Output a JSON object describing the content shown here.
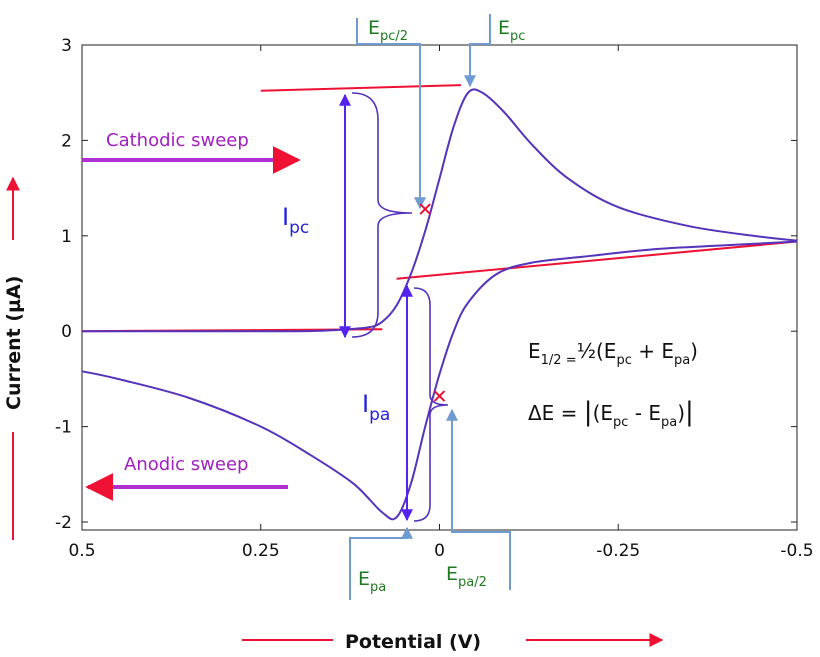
{
  "chart_data": {
    "type": "line",
    "title": "",
    "xlabel": "Potential (V)",
    "ylabel": "Current (µA)",
    "xlim": [
      0.5,
      -0.5
    ],
    "ylim": [
      -2.1,
      3.0
    ],
    "x_ticks": [
      0.5,
      0.25,
      0,
      -0.25,
      -0.5
    ],
    "x_tick_labels": [
      "0.5",
      "0.25",
      "0",
      "-0.25",
      "-0.5"
    ],
    "y_ticks": [
      3,
      2,
      1,
      0,
      -1,
      -2
    ],
    "y_tick_labels": [
      "3",
      "2",
      "1",
      "0",
      "-1",
      "-2"
    ],
    "grid": false,
    "series": [
      {
        "color": "#5533bb",
        "x": [
          0.5,
          0.3,
          0.2,
          0.15,
          0.1,
          0.08,
          0.06,
          0.04,
          0.02,
          0.0,
          -0.02,
          -0.04,
          -0.06,
          -0.09,
          -0.13,
          -0.18,
          -0.25,
          -0.35,
          -0.45,
          -0.5
        ],
        "y": [
          0.0,
          0.0,
          0.0,
          0.01,
          0.04,
          0.1,
          0.27,
          0.6,
          1.05,
          1.6,
          2.15,
          2.5,
          2.5,
          2.3,
          1.95,
          1.6,
          1.3,
          1.1,
          0.99,
          0.95
        ]
      },
      {
        "color": "#5533bb",
        "x": [
          -0.5,
          -0.4,
          -0.3,
          -0.2,
          -0.13,
          -0.08,
          -0.04,
          -0.02,
          0.0,
          0.02,
          0.04,
          0.06,
          0.08,
          0.12,
          0.18,
          0.25,
          0.35,
          0.45,
          0.5
        ],
        "y": [
          0.94,
          0.9,
          0.86,
          0.78,
          0.72,
          0.6,
          0.3,
          0.0,
          -0.45,
          -1.0,
          -1.6,
          -1.95,
          -1.9,
          -1.6,
          -1.3,
          -1.0,
          -0.7,
          -0.5,
          -0.42
        ]
      }
    ],
    "baselines": [
      {
        "color": "#ee1133",
        "x": [
          0.25,
          -0.03
        ],
        "y": [
          2.52,
          2.58
        ]
      },
      {
        "color": "#ee1133",
        "x": [
          0.5,
          0.08
        ],
        "y": [
          0.0,
          0.02
        ]
      },
      {
        "color": "#ee1133",
        "x": [
          0.06,
          -0.5
        ],
        "y": [
          0.55,
          0.94
        ]
      }
    ],
    "markers": [
      {
        "label": "E_pc/2",
        "x": 0.02,
        "y": 1.28
      },
      {
        "label": "E_pa/2",
        "x": 0.0,
        "y": -0.68
      }
    ],
    "annotations": {
      "epc_label": {
        "main": "E",
        "sub": "pc"
      },
      "epc2_label": {
        "main": "E",
        "sub": "pc/2"
      },
      "epa_label": {
        "main": "E",
        "sub": "pa"
      },
      "epa2_label": {
        "main": "E",
        "sub": "pa/2"
      },
      "ipc_label": {
        "main": "I",
        "sub": "pc"
      },
      "ipa_label": {
        "main": "I",
        "sub": "pa"
      },
      "cathodic": "Cathodic sweep",
      "anodic": "Anodic sweep",
      "eq1": {
        "a": "E",
        "a_sub": "1/2 =",
        "frac": "½",
        "open": "(E",
        "s1": "pc",
        "plus": " + E",
        "s2": "pa",
        "close": ")"
      },
      "eq2": {
        "a": "ΔE = ",
        "bar": "|",
        "open": "(E",
        "s1": "pc",
        "minus": " - E",
        "s2": "pa",
        "close": ")",
        "bar2": "|"
      }
    },
    "colors": {
      "curve": "#5533bb",
      "baseline": "#ee1133",
      "guide": "#6f9bd1",
      "marker": "#ee1133",
      "arrow": "#5522ee",
      "sweep": "#b030d0",
      "axis_arrow": "#ee1133"
    }
  }
}
